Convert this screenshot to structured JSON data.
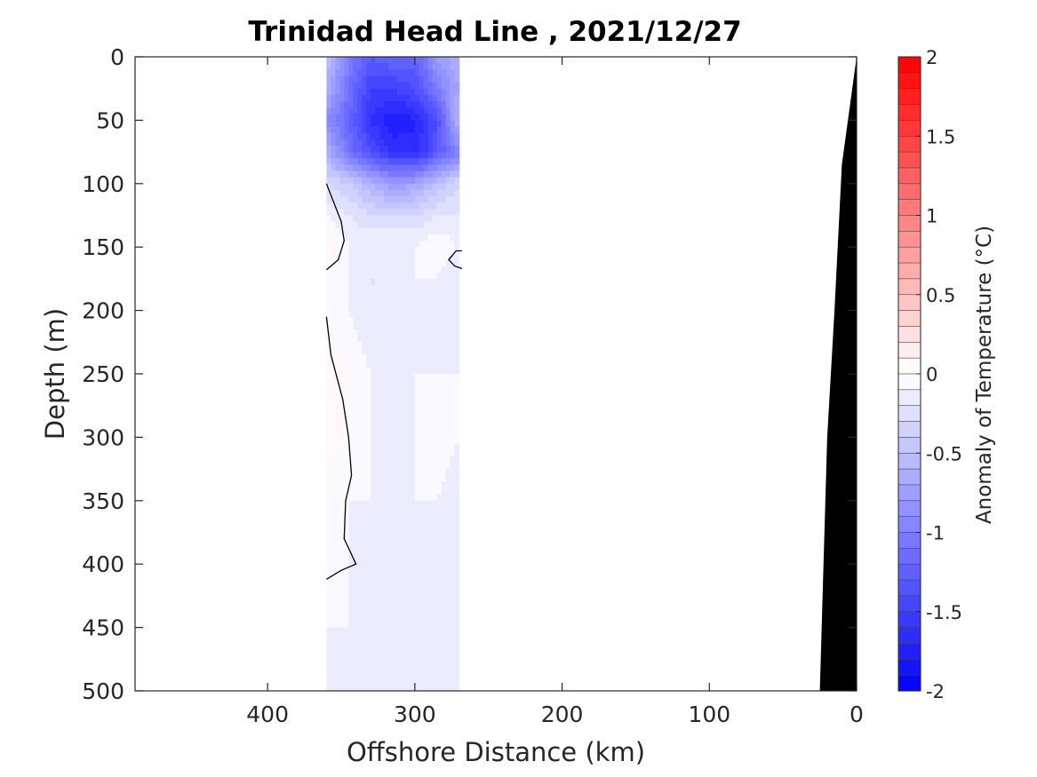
{
  "chart_data": {
    "type": "heatmap",
    "title": "Trinidad Head Line , 2021/12/27",
    "xlabel": "Offshore Distance (km)",
    "ylabel": "Depth (m)",
    "xlim": [
      490,
      0
    ],
    "ylim": [
      0,
      500
    ],
    "x_ticks": [
      400,
      300,
      200,
      100,
      0
    ],
    "y_ticks": [
      0,
      50,
      100,
      150,
      200,
      250,
      300,
      350,
      400,
      450,
      500
    ],
    "x_tick_labels": [
      "400",
      "300",
      "200",
      "100",
      "0"
    ],
    "y_tick_labels": [
      "0",
      "50",
      "100",
      "150",
      "200",
      "250",
      "300",
      "350",
      "400",
      "450",
      "500"
    ],
    "data_extent_x": [
      360,
      270
    ],
    "columns_km": [
      360,
      345,
      330,
      315,
      300,
      285,
      270
    ],
    "rows_depth_m": [
      0,
      25,
      50,
      75,
      100,
      125,
      150,
      175,
      200,
      250,
      300,
      350,
      400,
      450,
      500
    ],
    "values": [
      [
        -0.5,
        -1.0,
        -1.3,
        -1.2,
        -1.2,
        -0.8,
        -0.6
      ],
      [
        -0.6,
        -1.1,
        -1.5,
        -1.5,
        -1.4,
        -1.0,
        -0.7
      ],
      [
        -0.9,
        -1.2,
        -1.6,
        -1.8,
        -1.7,
        -1.4,
        -0.5
      ],
      [
        -0.6,
        -1.1,
        -1.4,
        -1.6,
        -1.7,
        -1.3,
        -1.0
      ],
      [
        -0.3,
        -0.4,
        -0.6,
        -0.8,
        -0.7,
        -0.5,
        -0.3
      ],
      [
        -0.1,
        -0.2,
        -0.3,
        -0.3,
        -0.3,
        -0.2,
        -0.2
      ],
      [
        0.1,
        -0.1,
        -0.1,
        -0.1,
        -0.1,
        0.0,
        -0.1
      ],
      [
        0.0,
        -0.1,
        -0.2,
        -0.2,
        -0.1,
        -0.1,
        -0.2
      ],
      [
        0.0,
        -0.1,
        -0.2,
        -0.2,
        -0.2,
        -0.1,
        -0.1
      ],
      [
        0.05,
        0.0,
        -0.1,
        -0.1,
        -0.1,
        -0.1,
        -0.1
      ],
      [
        0.05,
        0.0,
        -0.1,
        -0.1,
        -0.1,
        0.0,
        -0.1
      ],
      [
        0.0,
        -0.1,
        -0.1,
        -0.2,
        -0.1,
        -0.1,
        -0.2
      ],
      [
        0.0,
        -0.1,
        -0.1,
        -0.1,
        -0.1,
        -0.1,
        -0.2
      ],
      [
        -0.1,
        -0.1,
        -0.1,
        -0.1,
        -0.1,
        -0.1,
        -0.2
      ],
      [
        -0.1,
        -0.1,
        -0.1,
        -0.1,
        -0.1,
        -0.1,
        -0.1
      ]
    ],
    "zero_contours": [
      [
        [
          360,
          100
        ],
        [
          355,
          115
        ],
        [
          350,
          130
        ],
        [
          348,
          145
        ],
        [
          352,
          160
        ],
        [
          360,
          168
        ]
      ],
      [
        [
          268,
          153
        ],
        [
          272,
          153
        ],
        [
          277,
          160
        ],
        [
          273,
          165
        ],
        [
          268,
          167
        ]
      ],
      [
        [
          360,
          205
        ],
        [
          357,
          235
        ],
        [
          349,
          270
        ],
        [
          345,
          300
        ],
        [
          343,
          330
        ],
        [
          347,
          350
        ],
        [
          348,
          380
        ],
        [
          340,
          400
        ],
        [
          350,
          405
        ],
        [
          360,
          412
        ]
      ]
    ],
    "bathymetry_km_depth": [
      [
        0,
        0
      ],
      [
        10,
        85
      ],
      [
        15,
        200
      ],
      [
        20,
        300
      ],
      [
        25,
        500
      ]
    ],
    "colorbar": {
      "label": "Anomaly of Temperature (°C)",
      "range": [
        -2,
        2
      ],
      "levels": 40,
      "ticks": [
        2,
        1.5,
        1,
        0.5,
        0,
        -0.5,
        -1,
        -1.5,
        -2
      ],
      "tick_labels": [
        "2",
        "1.5",
        "1",
        "0.5",
        "0",
        "-0.5",
        "-1",
        "-1.5",
        "-2"
      ],
      "low_color": "#0000ff",
      "mid_color": "#ffffff",
      "high_color": "#ff0000"
    },
    "grid": false,
    "land_color": "#000000"
  }
}
